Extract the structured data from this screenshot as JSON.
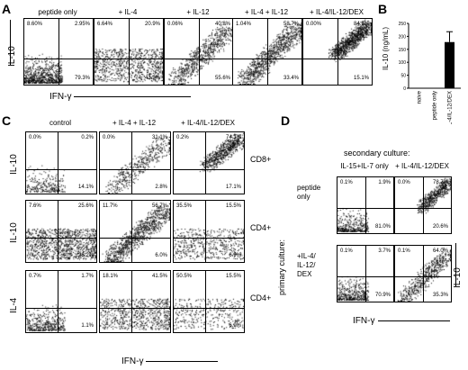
{
  "panels": {
    "A": {
      "letter": "A",
      "columns": [
        "peptide only",
        "+ IL-4",
        "+ IL-12",
        "+ IL-4 + IL-12",
        "+ IL-4/IL-12/DEX"
      ],
      "quadrants": [
        {
          "tl": "8.60%",
          "tr": "2.95%",
          "br": "79.3%"
        },
        {
          "tl": "6.64%",
          "tr": "20.9%",
          "br": "43.2%"
        },
        {
          "tl": "0.06%",
          "tr": "40.8%",
          "br": "55.6%"
        },
        {
          "tl": "1.04%",
          "tr": "58.7%",
          "br": "33.4%"
        },
        {
          "tl": "0.00%",
          "tr": "84.5%",
          "br": "15.1%"
        }
      ],
      "ylabel": "IL-10",
      "xlabel": "IFN-γ"
    },
    "B": {
      "letter": "B",
      "ylabel": "IL-10 (ng/mL)",
      "yticks": [
        "0",
        "50",
        "100",
        "150",
        "200",
        "250"
      ]
    },
    "C": {
      "letter": "C",
      "columns": [
        "control",
        "+ IL-4 + IL-12",
        "+ IL-4/IL-12/DEX"
      ],
      "rows": [
        {
          "ylabel": "IL-10",
          "side": "CD8+",
          "quadrants": [
            {
              "tl": "0.0%",
              "tr": "0.2%",
              "br": "14.1%"
            },
            {
              "tl": "0.0%",
              "tr": "31.1%",
              "br": "2.8%"
            },
            {
              "tl": "0.2%",
              "tr": "74.1%",
              "br": "17.1%"
            }
          ]
        },
        {
          "ylabel": "IL-10",
          "side": "CD4+",
          "quadrants": [
            {
              "tl": "7.6%",
              "tr": "25.6%",
              "br": "28.2%"
            },
            {
              "tl": "11.7%",
              "tr": "56.7%",
              "br": "6.0%"
            },
            {
              "tl": "35.5%",
              "tr": "15.5%",
              "br": "6.9%"
            }
          ]
        },
        {
          "ylabel": "IL-4",
          "side": "CD4+",
          "quadrants": [
            {
              "tl": "0.7%",
              "tr": "1.7%",
              "br": "1.1%"
            },
            {
              "tl": "18.1%",
              "tr": "41.5%",
              "br": ""
            },
            {
              "tl": "50.5%",
              "tr": "15.5%",
              "br": "6.9%"
            }
          ]
        }
      ],
      "xlabel": "IFN-γ"
    },
    "D": {
      "letter": "D",
      "title": "secondary culture:",
      "columns": [
        "IL-15+IL-7 only",
        "+ IL-4/IL-12/DEX"
      ],
      "primary_label": "primary culture:",
      "rows": [
        {
          "label_lines": [
            "peptide",
            "only"
          ],
          "quadrants": [
            {
              "tl": "0.1%",
              "tr": "1.9%",
              "br": "81.0%"
            },
            {
              "tl": "0.0%",
              "tr": "78.7%",
              "br": "20.6%"
            }
          ]
        },
        {
          "label_lines": [
            "+IL-4/",
            "IL-12/",
            "DEX"
          ],
          "quadrants": [
            {
              "tl": "0.1%",
              "tr": "3.7%",
              "br": "70.9%"
            },
            {
              "tl": "0.1%",
              "tr": "64.0%",
              "br": "35.3%"
            }
          ]
        }
      ],
      "ylabel": "IL-10",
      "xlabel": "IFN-γ"
    }
  },
  "chart_data": {
    "type": "bar",
    "categories": [
      "naive",
      "peptide only",
      "+IL-4/IL-12/DEX"
    ],
    "values": [
      0.5,
      1,
      178
    ],
    "error": [
      0,
      0,
      40
    ],
    "ylabel": "IL-10 (ng/mL)",
    "ylim": [
      0,
      250
    ]
  }
}
